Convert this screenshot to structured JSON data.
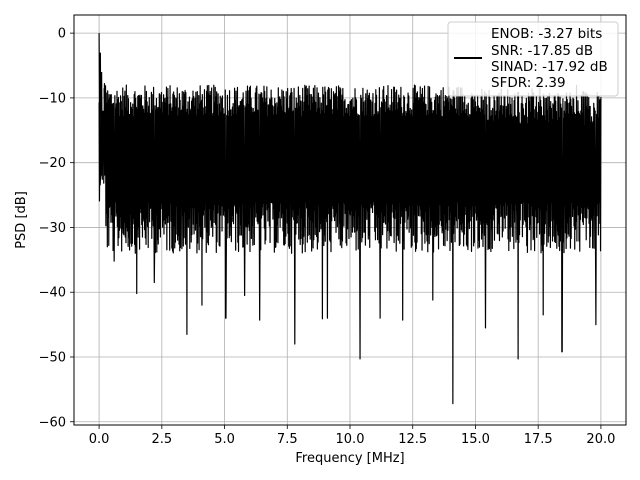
{
  "chart_data": {
    "type": "line",
    "title": "",
    "xlabel": "Frequency [MHz]",
    "ylabel": "PSD [dB]",
    "xlim": [
      -1.0,
      21.0
    ],
    "ylim": [
      -60.5,
      2.8
    ],
    "xticks": [
      0.0,
      2.5,
      5.0,
      7.5,
      10.0,
      12.5,
      15.0,
      17.5,
      20.0
    ],
    "xtick_labels": [
      "0.0",
      "2.5",
      "5.0",
      "7.5",
      "10.0",
      "12.5",
      "15.0",
      "17.5",
      "20.0"
    ],
    "yticks": [
      0,
      -10,
      -20,
      -30,
      -40,
      -50,
      -60
    ],
    "ytick_labels": [
      "0",
      "−10",
      "−20",
      "−30",
      "−40",
      "−50",
      "−60"
    ],
    "grid": true,
    "legend_position": "top-right",
    "legend_lines": [
      "ENOB: -3.27 bits",
      "SNR: -17.85 dB",
      "SINAD: -17.92 dB",
      "SFDR: 2.39"
    ],
    "line_color": "#000000",
    "series": [
      {
        "x_start": 0.0,
        "x_end": 20.0,
        "noise_envelope_db": {
          "typical_top": -12,
          "typical_bottom": -30
        },
        "peaks": [
          {
            "x": 0.0,
            "y": 0.0
          },
          {
            "x": 0.05,
            "y": -3.0
          },
          {
            "x": 0.1,
            "y": -6.0
          },
          {
            "x": 0.2,
            "y": -8.5
          }
        ],
        "dips": [
          {
            "x": 0.6,
            "y": -35.2
          },
          {
            "x": 1.5,
            "y": -40.2
          },
          {
            "x": 2.2,
            "y": -38.5
          },
          {
            "x": 3.5,
            "y": -46.5
          },
          {
            "x": 4.1,
            "y": -42.0
          },
          {
            "x": 5.05,
            "y": -44.0
          },
          {
            "x": 5.8,
            "y": -40.5
          },
          {
            "x": 6.4,
            "y": -44.3
          },
          {
            "x": 7.8,
            "y": -48.0
          },
          {
            "x": 8.9,
            "y": -44.1
          },
          {
            "x": 9.1,
            "y": -44.0
          },
          {
            "x": 10.4,
            "y": -50.3
          },
          {
            "x": 11.2,
            "y": -44.0
          },
          {
            "x": 12.1,
            "y": -44.3
          },
          {
            "x": 13.3,
            "y": -41.2
          },
          {
            "x": 14.1,
            "y": -57.2
          },
          {
            "x": 15.4,
            "y": -45.5
          },
          {
            "x": 16.7,
            "y": -50.3
          },
          {
            "x": 17.7,
            "y": -43.5
          },
          {
            "x": 18.45,
            "y": -49.2
          },
          {
            "x": 19.8,
            "y": -45.0
          }
        ]
      }
    ]
  }
}
